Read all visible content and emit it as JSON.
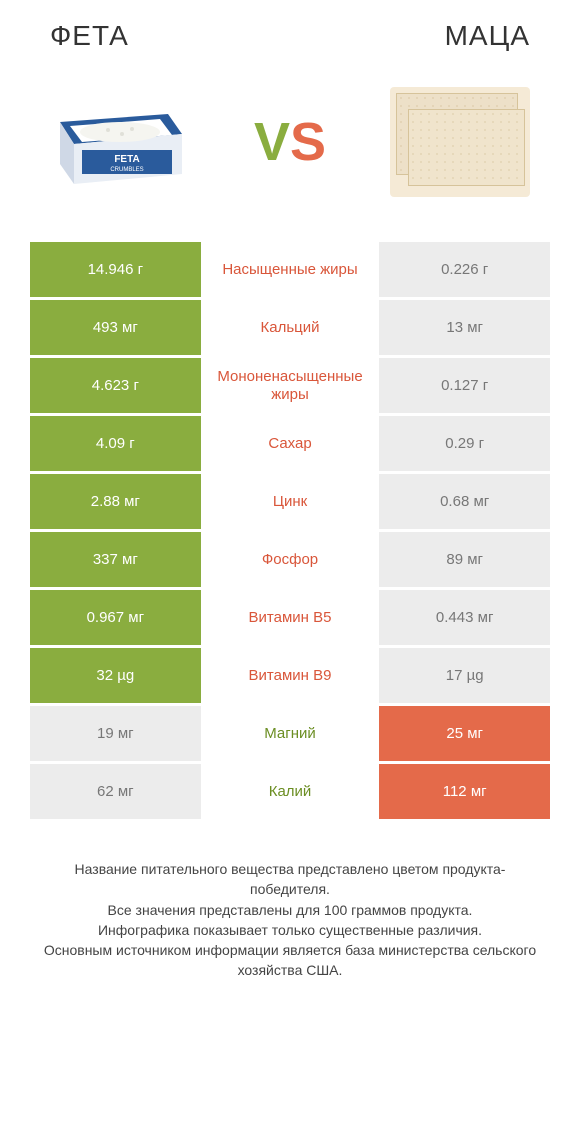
{
  "header": {
    "left_title": "ФЕТА",
    "right_title": "МАЦА",
    "vs_v": "V",
    "vs_s": "S"
  },
  "colors": {
    "green": "#8aad3f",
    "orange": "#e46a4a",
    "light_gray": "#ececec",
    "label_green": "#6b8e23",
    "label_orange": "#d9563a"
  },
  "rows": [
    {
      "left": "14.946 г",
      "label": "Насыщенные жиры",
      "right": "0.226 г",
      "winner": "left"
    },
    {
      "left": "493 мг",
      "label": "Кальций",
      "right": "13 мг",
      "winner": "left"
    },
    {
      "left": "4.623 г",
      "label": "Мононенасыщенные жиры",
      "right": "0.127 г",
      "winner": "left"
    },
    {
      "left": "4.09 г",
      "label": "Сахар",
      "right": "0.29 г",
      "winner": "left"
    },
    {
      "left": "2.88 мг",
      "label": "Цинк",
      "right": "0.68 мг",
      "winner": "left"
    },
    {
      "left": "337 мг",
      "label": "Фосфор",
      "right": "89 мг",
      "winner": "left"
    },
    {
      "left": "0.967 мг",
      "label": "Витамин B5",
      "right": "0.443 мг",
      "winner": "left"
    },
    {
      "left": "32 µg",
      "label": "Витамин B9",
      "right": "17 µg",
      "winner": "left"
    },
    {
      "left": "19 мг",
      "label": "Магний",
      "right": "25 мг",
      "winner": "right"
    },
    {
      "left": "62 мг",
      "label": "Калий",
      "right": "112 мг",
      "winner": "right"
    }
  ],
  "footer": {
    "line1": "Название питательного вещества представлено цветом продукта-победителя.",
    "line2": "Все значения представлены для 100 граммов продукта.",
    "line3": "Инфографика показывает только существенные различия.",
    "line4": "Основным источником информации является база министерства сельского хозяйства США."
  }
}
